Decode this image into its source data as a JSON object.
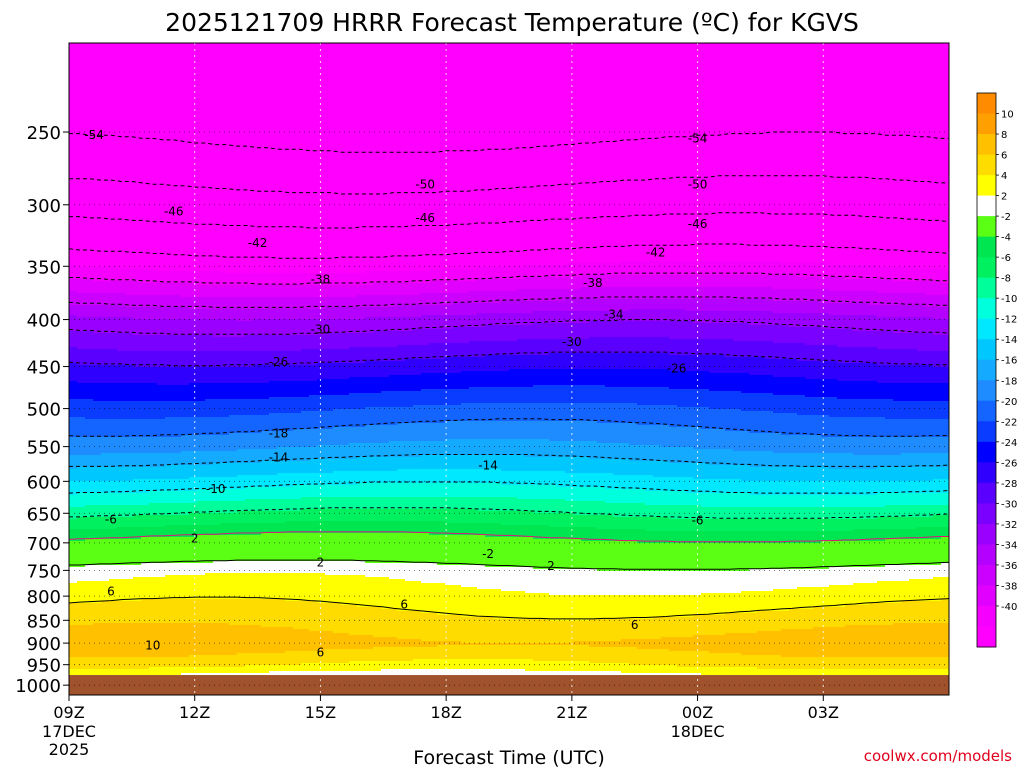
{
  "chart_data": {
    "type": "heatmap",
    "title": "2025121709 HRRR Forecast Temperature (ºC) for KGVS",
    "xlabel": "Forecast Time (UTC)",
    "ylabel": "",
    "x_hours": [
      0,
      21
    ],
    "x_ticks": [
      {
        "h": 0,
        "label": "09Z",
        "line2": "17DEC",
        "line3": "2025"
      },
      {
        "h": 3,
        "label": "12Z",
        "line2": "",
        "line3": ""
      },
      {
        "h": 6,
        "label": "15Z",
        "line2": "",
        "line3": ""
      },
      {
        "h": 9,
        "label": "18Z",
        "line2": "",
        "line3": ""
      },
      {
        "h": 12,
        "label": "21Z",
        "line2": "",
        "line3": ""
      },
      {
        "h": 15,
        "label": "00Z",
        "line2": "18DEC",
        "line3": ""
      },
      {
        "h": 18,
        "label": "03Z",
        "line2": "",
        "line3": ""
      }
    ],
    "y_levels_hpa": [
      250,
      300,
      350,
      400,
      450,
      500,
      550,
      600,
      650,
      700,
      750,
      800,
      850,
      900,
      950,
      1000
    ],
    "ylim": [
      1025,
      200
    ],
    "surface_pressure": 975,
    "temperature_profile": [
      {
        "p": 200,
        "t": -58
      },
      {
        "p": 250,
        "t": -55
      },
      {
        "p": 300,
        "t": -48
      },
      {
        "p": 350,
        "t": -40
      },
      {
        "p": 400,
        "t": -31
      },
      {
        "p": 450,
        "t": -25
      },
      {
        "p": 500,
        "t": -20
      },
      {
        "p": 550,
        "t": -16
      },
      {
        "p": 600,
        "t": -11
      },
      {
        "p": 650,
        "t": -6
      },
      {
        "p": 700,
        "t": -1
      },
      {
        "p": 730,
        "t": 1
      },
      {
        "p": 750,
        "t": 3
      },
      {
        "p": 800,
        "t": 5
      },
      {
        "p": 850,
        "t": 7
      },
      {
        "p": 900,
        "t": 9
      },
      {
        "p": 950,
        "t": 6
      },
      {
        "p": 975,
        "t": 3
      }
    ],
    "contours": [
      {
        "t": -54,
        "label_positions": [
          [
            0.6,
            252
          ],
          [
            15,
            254
          ]
        ]
      },
      {
        "t": -50,
        "label_positions": [
          [
            8.5,
            285
          ],
          [
            15,
            285
          ]
        ]
      },
      {
        "t": -46,
        "label_positions": [
          [
            2.5,
            305
          ],
          [
            8.5,
            310
          ],
          [
            15,
            315
          ]
        ]
      },
      {
        "t": -42,
        "label_positions": [
          [
            4.5,
            330
          ],
          [
            14,
            338
          ]
        ]
      },
      {
        "t": -38,
        "label_positions": [
          [
            6,
            362
          ],
          [
            12.5,
            365
          ]
        ]
      },
      {
        "t": -34,
        "label_positions": [
          [
            13,
            395
          ]
        ]
      },
      {
        "t": -30,
        "label_positions": [
          [
            6,
            410
          ],
          [
            12,
            423
          ]
        ]
      },
      {
        "t": -26,
        "label_positions": [
          [
            5,
            445
          ],
          [
            14.5,
            452
          ]
        ]
      },
      {
        "t": -18,
        "label_positions": [
          [
            5,
            532
          ]
        ]
      },
      {
        "t": -14,
        "label_positions": [
          [
            5,
            565
          ],
          [
            10,
            577
          ]
        ]
      },
      {
        "t": -10,
        "label_positions": [
          [
            3.5,
            612
          ]
        ]
      },
      {
        "t": -6,
        "label_positions": [
          [
            1,
            660
          ],
          [
            15,
            662
          ]
        ]
      },
      {
        "t": -2,
        "label_positions": [
          [
            10,
            720
          ]
        ]
      },
      {
        "t": 2,
        "label_positions": [
          [
            3,
            692
          ],
          [
            6,
            735
          ],
          [
            11.5,
            742
          ]
        ]
      },
      {
        "t": 6,
        "label_positions": [
          [
            1,
            791
          ],
          [
            8,
            817
          ],
          [
            13.5,
            860
          ],
          [
            6,
            922
          ]
        ]
      },
      {
        "t": 10,
        "label_positions": [
          [
            2,
            905
          ]
        ]
      }
    ],
    "colorbar": {
      "boundaries": [
        -42,
        -40,
        -38,
        -36,
        -34,
        -32,
        -30,
        -28,
        -26,
        -24,
        -22,
        -20,
        -18,
        -16,
        -14,
        -12,
        -10,
        -8,
        -6,
        -4,
        -2,
        2,
        4,
        6,
        8,
        10,
        12
      ],
      "colors": [
        "#ff00ff",
        "#f500ff",
        "#e100ff",
        "#cc00ff",
        "#b400ff",
        "#9a00ff",
        "#7a00ff",
        "#5a00ff",
        "#3000ff",
        "#0000ff",
        "#0a3cff",
        "#1464ff",
        "#1e8cff",
        "#14aaff",
        "#00c8ff",
        "#00e8ff",
        "#00ffdc",
        "#00ff9a",
        "#00f060",
        "#00e650",
        "#5aff14",
        "#ffffff",
        "#ffff00",
        "#ffdc00",
        "#ffc000",
        "#ffa000",
        "#ff8c00"
      ],
      "tick_labels": [
        "10",
        "8",
        "6",
        "4",
        "2",
        "-2",
        "-4",
        "-6",
        "-8",
        "-10",
        "-12",
        "-14",
        "-16",
        "-18",
        "-20",
        "-22",
        "-24",
        "-26",
        "-28",
        "-30",
        "-32",
        "-34",
        "-36",
        "-38",
        "-40"
      ]
    },
    "ground_color": "#a0522d",
    "freezing_line_color": "#e0147a"
  },
  "credit": "coolwx.com/models"
}
